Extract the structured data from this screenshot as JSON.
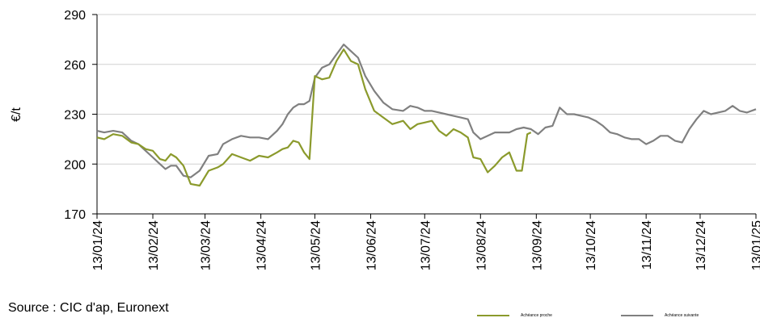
{
  "chart_data": {
    "type": "line",
    "title": "",
    "ylabel": "€/t",
    "xlabel": "",
    "ylim": [
      170,
      290
    ],
    "yticks": [
      170,
      200,
      230,
      260,
      290
    ],
    "x_tick_labels": [
      "13/01/24",
      "13/02/24",
      "13/03/24",
      "13/04/24",
      "13/05/24",
      "13/06/24",
      "13/07/24",
      "13/08/24",
      "13/09/24",
      "13/10/24",
      "13/11/24",
      "13/12/24",
      "13/01/25"
    ],
    "grid": "horizontal",
    "legend_position": "bottom-right",
    "series": [
      {
        "name": "Achéance proche",
        "color": "#8b9a2c",
        "x": [
          "2024-01-13",
          "2024-01-17",
          "2024-01-22",
          "2024-01-27",
          "2024-02-01",
          "2024-02-05",
          "2024-02-09",
          "2024-02-13",
          "2024-02-17",
          "2024-02-20",
          "2024-02-23",
          "2024-02-26",
          "2024-03-01",
          "2024-03-05",
          "2024-03-10",
          "2024-03-15",
          "2024-03-20",
          "2024-03-23",
          "2024-03-28",
          "2024-04-02",
          "2024-04-07",
          "2024-04-12",
          "2024-04-17",
          "2024-04-22",
          "2024-04-25",
          "2024-04-28",
          "2024-05-01",
          "2024-05-04",
          "2024-05-07",
          "2024-05-10",
          "2024-05-13",
          "2024-05-17",
          "2024-05-21",
          "2024-05-25",
          "2024-05-29",
          "2024-06-02",
          "2024-06-06",
          "2024-06-10",
          "2024-06-15",
          "2024-06-20",
          "2024-06-25",
          "2024-07-01",
          "2024-07-05",
          "2024-07-09",
          "2024-07-13",
          "2024-07-17",
          "2024-07-21",
          "2024-07-25",
          "2024-07-29",
          "2024-08-02",
          "2024-08-06",
          "2024-08-09",
          "2024-08-13",
          "2024-08-17",
          "2024-08-21",
          "2024-08-25",
          "2024-08-29",
          "2024-09-02",
          "2024-09-05",
          "2024-09-08",
          "2024-09-10"
        ],
        "values": [
          216,
          215,
          218,
          217,
          213,
          212,
          209,
          208,
          203,
          202,
          206,
          204,
          199,
          188,
          187,
          196,
          198,
          200,
          206,
          204,
          202,
          205,
          204,
          207,
          209,
          210,
          214,
          213,
          207,
          203,
          253,
          251,
          252,
          262,
          269,
          262,
          260,
          245,
          232,
          228,
          224,
          226,
          221,
          224,
          225,
          226,
          220,
          217,
          221,
          219,
          216,
          204,
          203,
          195,
          199,
          204,
          207,
          196,
          196,
          218,
          219
        ]
      },
      {
        "name": "Achéance suivante",
        "color": "#808080",
        "x": [
          "2024-01-13",
          "2024-01-17",
          "2024-01-22",
          "2024-01-27",
          "2024-02-01",
          "2024-02-05",
          "2024-02-09",
          "2024-02-13",
          "2024-02-17",
          "2024-02-20",
          "2024-02-23",
          "2024-02-26",
          "2024-03-01",
          "2024-03-05",
          "2024-03-10",
          "2024-03-15",
          "2024-03-20",
          "2024-03-23",
          "2024-03-28",
          "2024-04-02",
          "2024-04-07",
          "2024-04-12",
          "2024-04-17",
          "2024-04-22",
          "2024-04-25",
          "2024-04-28",
          "2024-05-01",
          "2024-05-04",
          "2024-05-07",
          "2024-05-10",
          "2024-05-13",
          "2024-05-17",
          "2024-05-21",
          "2024-05-25",
          "2024-05-29",
          "2024-06-02",
          "2024-06-06",
          "2024-06-10",
          "2024-06-15",
          "2024-06-20",
          "2024-06-25",
          "2024-07-01",
          "2024-07-05",
          "2024-07-09",
          "2024-07-13",
          "2024-07-17",
          "2024-07-21",
          "2024-07-25",
          "2024-07-29",
          "2024-08-02",
          "2024-08-06",
          "2024-08-09",
          "2024-08-13",
          "2024-08-17",
          "2024-08-21",
          "2024-08-25",
          "2024-08-29",
          "2024-09-02",
          "2024-09-06",
          "2024-09-10",
          "2024-09-14",
          "2024-09-18",
          "2024-09-22",
          "2024-09-26",
          "2024-09-30",
          "2024-10-04",
          "2024-10-08",
          "2024-10-12",
          "2024-10-16",
          "2024-10-20",
          "2024-10-24",
          "2024-10-28",
          "2024-11-01",
          "2024-11-05",
          "2024-11-09",
          "2024-11-13",
          "2024-11-17",
          "2024-11-21",
          "2024-11-25",
          "2024-11-29",
          "2024-12-03",
          "2024-12-07",
          "2024-12-11",
          "2024-12-15",
          "2024-12-19",
          "2024-12-23",
          "2024-12-27",
          "2024-12-31",
          "2025-01-04",
          "2025-01-08",
          "2025-01-13"
        ],
        "values": [
          220,
          219,
          220,
          219,
          214,
          212,
          208,
          204,
          200,
          197,
          199,
          199,
          193,
          192,
          196,
          205,
          206,
          212,
          215,
          217,
          216,
          216,
          215,
          220,
          224,
          230,
          234,
          236,
          236,
          238,
          252,
          258,
          260,
          266,
          272,
          268,
          264,
          253,
          244,
          237,
          233,
          232,
          235,
          234,
          232,
          232,
          231,
          230,
          229,
          228,
          227,
          219,
          215,
          217,
          219,
          219,
          219,
          221,
          222,
          221,
          218,
          222,
          223,
          234,
          230,
          230,
          229,
          228,
          226,
          223,
          219,
          218,
          216,
          215,
          215,
          212,
          214,
          217,
          217,
          214,
          213,
          221,
          227,
          232,
          230,
          231,
          232,
          235,
          232,
          231,
          233
        ]
      }
    ]
  },
  "source_text": "Source : CIC d'ap, Euronext"
}
